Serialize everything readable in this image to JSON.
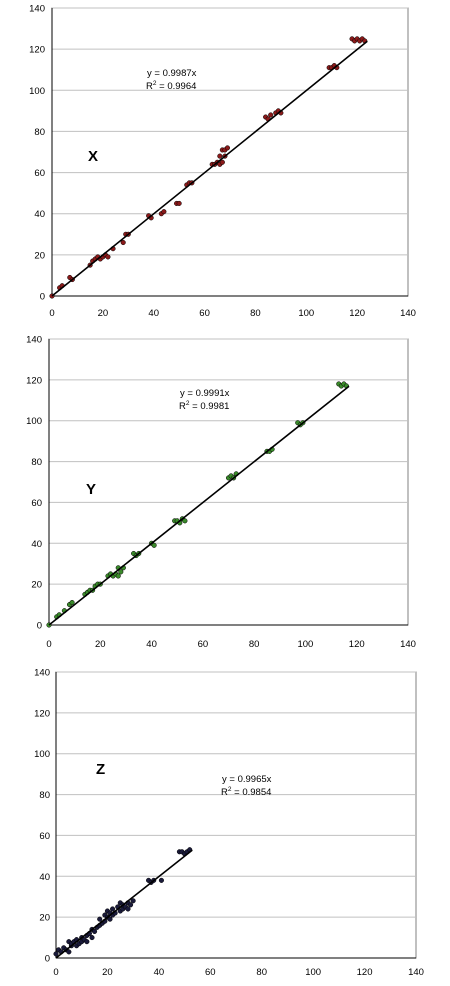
{
  "chart_data": [
    {
      "type": "scatter",
      "panel_label": "X",
      "equation": "y = 0.9987x",
      "r2": "R",
      "r2_sup": "2",
      "r2_value": " = 0.9964",
      "xlim": [
        0,
        140
      ],
      "ylim": [
        0,
        140
      ],
      "xticks": [
        "0",
        "20",
        "40",
        "60",
        "80",
        "100",
        "120",
        "140"
      ],
      "yticks": [
        "0",
        "20",
        "40",
        "60",
        "80",
        "100",
        "120",
        "140"
      ],
      "grid": "horizontal",
      "marker_color": "#8b1a1a",
      "trend_slope": 0.9987,
      "trend_xmax": 124,
      "series": [
        {
          "points": [
            [
              0,
              0
            ],
            [
              3,
              4
            ],
            [
              4,
              5
            ],
            [
              7,
              9
            ],
            [
              8,
              8
            ],
            [
              15,
              15
            ],
            [
              16,
              17
            ],
            [
              17,
              18
            ],
            [
              18,
              19
            ],
            [
              19,
              18
            ],
            [
              20,
              19
            ],
            [
              21,
              20
            ],
            [
              22,
              19
            ],
            [
              24,
              23
            ],
            [
              28,
              26
            ],
            [
              29,
              30
            ],
            [
              30,
              30
            ],
            [
              38,
              39
            ],
            [
              39,
              38
            ],
            [
              43,
              40
            ],
            [
              44,
              41
            ],
            [
              49,
              45
            ],
            [
              50,
              45
            ],
            [
              53,
              54
            ],
            [
              54,
              55
            ],
            [
              55,
              55
            ],
            [
              63,
              64
            ],
            [
              64,
              64
            ],
            [
              65,
              65
            ],
            [
              66,
              64
            ],
            [
              67,
              65
            ],
            [
              67,
              71
            ],
            [
              68,
              71
            ],
            [
              69,
              72
            ],
            [
              66,
              68
            ],
            [
              68,
              68
            ],
            [
              84,
              87
            ],
            [
              85,
              86
            ],
            [
              86,
              88
            ],
            [
              88,
              89
            ],
            [
              89,
              90
            ],
            [
              90,
              89
            ],
            [
              109,
              111
            ],
            [
              110,
              111
            ],
            [
              111,
              112
            ],
            [
              112,
              111
            ],
            [
              118,
              125
            ],
            [
              119,
              124
            ],
            [
              120,
              125
            ],
            [
              121,
              124
            ],
            [
              122,
              125
            ],
            [
              123,
              124
            ]
          ]
        }
      ]
    },
    {
      "type": "scatter",
      "panel_label": "Y",
      "equation": "y = 0.9991x",
      "r2": "R",
      "r2_sup": "2",
      "r2_value": " = 0.9981",
      "xlim": [
        0,
        140
      ],
      "ylim": [
        0,
        140
      ],
      "xticks": [
        "0",
        "20",
        "40",
        "60",
        "80",
        "100",
        "120",
        "140"
      ],
      "yticks": [
        "0",
        "20",
        "40",
        "60",
        "80",
        "100",
        "120",
        "140"
      ],
      "grid": "horizontal",
      "marker_color": "#3a8a2a",
      "trend_slope": 0.9991,
      "trend_xmax": 117,
      "series": [
        {
          "points": [
            [
              0,
              0
            ],
            [
              3,
              4
            ],
            [
              4,
              5
            ],
            [
              6,
              7
            ],
            [
              8,
              10
            ],
            [
              9,
              11
            ],
            [
              14,
              15
            ],
            [
              15,
              16
            ],
            [
              16,
              17
            ],
            [
              17,
              17
            ],
            [
              18,
              19
            ],
            [
              19,
              20
            ],
            [
              20,
              20
            ],
            [
              23,
              24
            ],
            [
              24,
              25
            ],
            [
              25,
              24
            ],
            [
              26,
              25
            ],
            [
              27,
              24
            ],
            [
              28,
              26
            ],
            [
              29,
              28
            ],
            [
              27,
              28
            ],
            [
              33,
              35
            ],
            [
              34,
              34
            ],
            [
              35,
              35
            ],
            [
              40,
              40
            ],
            [
              41,
              39
            ],
            [
              49,
              51
            ],
            [
              50,
              51
            ],
            [
              51,
              50
            ],
            [
              52,
              52
            ],
            [
              53,
              51
            ],
            [
              70,
              72
            ],
            [
              71,
              73
            ],
            [
              72,
              72
            ],
            [
              73,
              74
            ],
            [
              85,
              85
            ],
            [
              86,
              85
            ],
            [
              87,
              86
            ],
            [
              97,
              99
            ],
            [
              98,
              98
            ],
            [
              99,
              99
            ],
            [
              113,
              118
            ],
            [
              114,
              117
            ],
            [
              115,
              118
            ],
            [
              116,
              117
            ]
          ]
        }
      ]
    },
    {
      "type": "scatter",
      "panel_label": "Z",
      "equation": "y = 0.9965x",
      "r2": "R",
      "r2_sup": "2",
      "r2_value": " = 0.9854",
      "xlim": [
        0,
        140
      ],
      "ylim": [
        0,
        140
      ],
      "xticks": [
        "0",
        "20",
        "40",
        "60",
        "80",
        "100",
        "120",
        "140"
      ],
      "yticks": [
        "0",
        "20",
        "40",
        "60",
        "80",
        "100",
        "120",
        "140"
      ],
      "grid": "horizontal",
      "marker_color": "#1a1a3a",
      "trend_slope": 0.9965,
      "trend_xmax": 53,
      "series": [
        {
          "points": [
            [
              0,
              2
            ],
            [
              1,
              4
            ],
            [
              2,
              3
            ],
            [
              3,
              5
            ],
            [
              4,
              4
            ],
            [
              5,
              3
            ],
            [
              6,
              6
            ],
            [
              5,
              8
            ],
            [
              6,
              7
            ],
            [
              7,
              8
            ],
            [
              8,
              6
            ],
            [
              8,
              9
            ],
            [
              9,
              7
            ],
            [
              10,
              8
            ],
            [
              10,
              10
            ],
            [
              11,
              9
            ],
            [
              12,
              11
            ],
            [
              12,
              8
            ],
            [
              13,
              12
            ],
            [
              14,
              14
            ],
            [
              14,
              10
            ],
            [
              15,
              13
            ],
            [
              16,
              15
            ],
            [
              17,
              16
            ],
            [
              17,
              19
            ],
            [
              18,
              17
            ],
            [
              19,
              18
            ],
            [
              19,
              21
            ],
            [
              20,
              20
            ],
            [
              20,
              23
            ],
            [
              21,
              19
            ],
            [
              21,
              22
            ],
            [
              22,
              24
            ],
            [
              22,
              21
            ],
            [
              23,
              22
            ],
            [
              24,
              25
            ],
            [
              25,
              23
            ],
            [
              25,
              27
            ],
            [
              26,
              24
            ],
            [
              26,
              26
            ],
            [
              27,
              25
            ],
            [
              28,
              27
            ],
            [
              28,
              24
            ],
            [
              29,
              26
            ],
            [
              30,
              28
            ],
            [
              36,
              38
            ],
            [
              37,
              37
            ],
            [
              38,
              38
            ],
            [
              41,
              38
            ],
            [
              48,
              52
            ],
            [
              49,
              52
            ],
            [
              50,
              51
            ],
            [
              51,
              52
            ],
            [
              52,
              53
            ]
          ]
        }
      ]
    }
  ]
}
